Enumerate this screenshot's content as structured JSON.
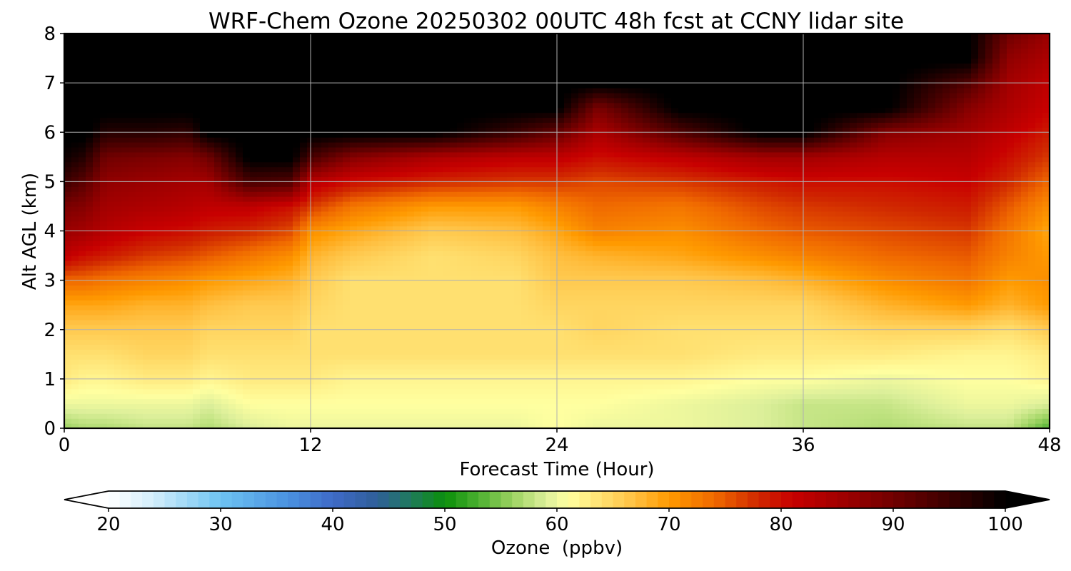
{
  "chart_data": {
    "type": "heatmap",
    "title": "WRF-Chem Ozone  20250302 00UTC 48h fcst at CCNY lidar site",
    "xlabel": "Forecast Time (Hour)",
    "ylabel": "Alt AGL (km)",
    "xlim": [
      0,
      48
    ],
    "ylim": [
      0,
      8
    ],
    "xticks": [
      0,
      12,
      24,
      36,
      48
    ],
    "yticks": [
      0,
      1,
      2,
      3,
      4,
      5,
      6,
      7,
      8
    ],
    "grid": true,
    "colorbar": {
      "label": "Ozone  (ppbv)",
      "min": 20,
      "max": 100,
      "ticks": [
        20,
        30,
        40,
        50,
        60,
        70,
        80,
        90,
        100
      ],
      "extend": "both",
      "orientation": "horizontal",
      "under_color": "#ffffff",
      "over_color": "#000000",
      "color_stops": [
        {
          "value": 20,
          "color": "#ffffff"
        },
        {
          "value": 24,
          "color": "#d2eefb"
        },
        {
          "value": 30,
          "color": "#6ec3f2"
        },
        {
          "value": 36,
          "color": "#4a92e0"
        },
        {
          "value": 40,
          "color": "#3f6ac8"
        },
        {
          "value": 44,
          "color": "#2f5f98"
        },
        {
          "value": 47,
          "color": "#1f7a5c"
        },
        {
          "value": 50,
          "color": "#0a8f0a"
        },
        {
          "value": 53,
          "color": "#4cb030"
        },
        {
          "value": 56,
          "color": "#9bd260"
        },
        {
          "value": 59,
          "color": "#dcef9a"
        },
        {
          "value": 61,
          "color": "#ffffa0"
        },
        {
          "value": 64,
          "color": "#ffe070"
        },
        {
          "value": 67,
          "color": "#ffbf40"
        },
        {
          "value": 70,
          "color": "#ff9a00"
        },
        {
          "value": 74,
          "color": "#f06a00"
        },
        {
          "value": 78,
          "color": "#d02800"
        },
        {
          "value": 81,
          "color": "#c80000"
        },
        {
          "value": 86,
          "color": "#9a0000"
        },
        {
          "value": 91,
          "color": "#660000"
        },
        {
          "value": 96,
          "color": "#300000"
        },
        {
          "value": 100,
          "color": "#000000"
        }
      ]
    },
    "x_hours": [
      0,
      1,
      2,
      4,
      6,
      7,
      9,
      11,
      12,
      14,
      18,
      22,
      24,
      26,
      30,
      34,
      36,
      40,
      44,
      46,
      48
    ],
    "levels_km": [
      0.0,
      0.5,
      1.0,
      1.5,
      2.0,
      2.5,
      3.0,
      3.5,
      4.0,
      4.5,
      5.0,
      5.5,
      6.0,
      6.5,
      7.0,
      7.5,
      8.0
    ],
    "values": [
      [
        56,
        60,
        63,
        64,
        66,
        69,
        74,
        82,
        86,
        89,
        95,
        99,
        101,
        101,
        101,
        101,
        101
      ],
      [
        57,
        60,
        62,
        64,
        66,
        69,
        74,
        80,
        85,
        88,
        92,
        97,
        101,
        101,
        101,
        101,
        101
      ],
      [
        57,
        60,
        62,
        64,
        66,
        69,
        73,
        79,
        83,
        85,
        87,
        90,
        97,
        101,
        101,
        101,
        101
      ],
      [
        58,
        60,
        63,
        65,
        66,
        68,
        72,
        77,
        81,
        84,
        86,
        89,
        97,
        101,
        101,
        101,
        101
      ],
      [
        58,
        60,
        63,
        65,
        66,
        68,
        71,
        76,
        80,
        83,
        85,
        88,
        96,
        101,
        101,
        101,
        101
      ],
      [
        57,
        59,
        62,
        64,
        65,
        67,
        70,
        75,
        79,
        82,
        85,
        90,
        101,
        101,
        101,
        101,
        101
      ],
      [
        59,
        61,
        63,
        64,
        65,
        66,
        69,
        73,
        78,
        82,
        94,
        101,
        101,
        101,
        101,
        101,
        101
      ],
      [
        60,
        61,
        63,
        64,
        65,
        66,
        68,
        71,
        76,
        80,
        93,
        101,
        101,
        101,
        101,
        101,
        101
      ],
      [
        60,
        61,
        63,
        64,
        64,
        65,
        66,
        68,
        71,
        77,
        83,
        94,
        101,
        101,
        101,
        101,
        101
      ],
      [
        60,
        61,
        62,
        64,
        64,
        64,
        64,
        66,
        69,
        73,
        80,
        88,
        101,
        101,
        101,
        101,
        101
      ],
      [
        60,
        61,
        62,
        64,
        64,
        64,
        64,
        64,
        66,
        70,
        78,
        84,
        101,
        101,
        101,
        101,
        101
      ],
      [
        60,
        61,
        62,
        64,
        64,
        64,
        64,
        65,
        67,
        70,
        77,
        82,
        95,
        101,
        101,
        101,
        101
      ],
      [
        61,
        61,
        62,
        64,
        64,
        65,
        66,
        67,
        69,
        72,
        77,
        82,
        91,
        101,
        101,
        101,
        101
      ],
      [
        60,
        61,
        62,
        64,
        65,
        65,
        66,
        68,
        72,
        74,
        76,
        80,
        84,
        89,
        101,
        101,
        101
      ],
      [
        60,
        60,
        62,
        64,
        64,
        65,
        66,
        69,
        71,
        73,
        77,
        82,
        93,
        101,
        101,
        101,
        101
      ],
      [
        59,
        59,
        61,
        63,
        64,
        65,
        67,
        71,
        74,
        76,
        79,
        85,
        101,
        101,
        101,
        101,
        101
      ],
      [
        58,
        58,
        61,
        63,
        64,
        65,
        68,
        72,
        75,
        77,
        80,
        85,
        101,
        101,
        101,
        101,
        101
      ],
      [
        57,
        58,
        60,
        63,
        65,
        68,
        71,
        74,
        76,
        78,
        80,
        83,
        88,
        101,
        101,
        101,
        101
      ],
      [
        58,
        60,
        61,
        62,
        65,
        70,
        73,
        75,
        77,
        79,
        81,
        83,
        85,
        88,
        93,
        101,
        101
      ],
      [
        58,
        60,
        61,
        62,
        64,
        68,
        70,
        72,
        73,
        75,
        78,
        80,
        82,
        84,
        85,
        87,
        90
      ],
      [
        53,
        59,
        62,
        63,
        66,
        70,
        71,
        70,
        69,
        71,
        74,
        77,
        79,
        81,
        82,
        84,
        86
      ]
    ]
  }
}
